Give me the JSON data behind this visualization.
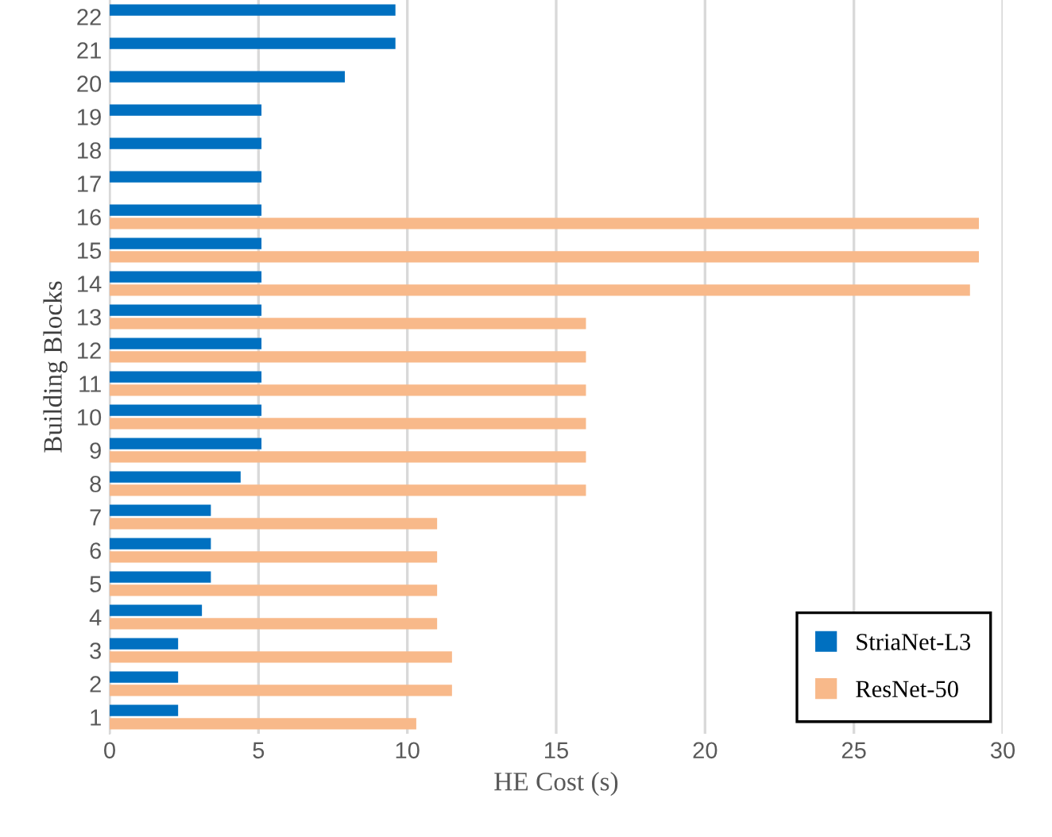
{
  "chart_data": {
    "type": "bar",
    "orientation": "horizontal",
    "xlabel": "HE Cost (s)",
    "ylabel": "Building Blocks",
    "categories": [
      "22",
      "21",
      "20",
      "19",
      "18",
      "17",
      "16",
      "15",
      "14",
      "13",
      "12",
      "11",
      "10",
      "9",
      "8",
      "7",
      "6",
      "5",
      "4",
      "3",
      "2",
      "1"
    ],
    "series": [
      {
        "name": "StriaNet-L3",
        "color": "#0070c0",
        "values": [
          9.6,
          9.6,
          7.9,
          5.1,
          5.1,
          5.1,
          5.1,
          5.1,
          5.1,
          5.1,
          5.1,
          5.1,
          5.1,
          5.1,
          4.4,
          3.4,
          3.4,
          3.4,
          3.1,
          2.3,
          2.3,
          2.3
        ]
      },
      {
        "name": "ResNet-50",
        "color": "#f8b98a",
        "values": [
          null,
          null,
          null,
          null,
          null,
          null,
          29.2,
          29.2,
          28.9,
          16.0,
          16.0,
          16.0,
          16.0,
          16.0,
          16.0,
          11.0,
          11.0,
          11.0,
          11.0,
          11.5,
          11.5,
          10.3
        ]
      }
    ],
    "xlim": [
      0,
      30
    ],
    "xticks": [
      0,
      5,
      10,
      15,
      20,
      25,
      30
    ],
    "grid": "x",
    "legend": "bottom right"
  }
}
